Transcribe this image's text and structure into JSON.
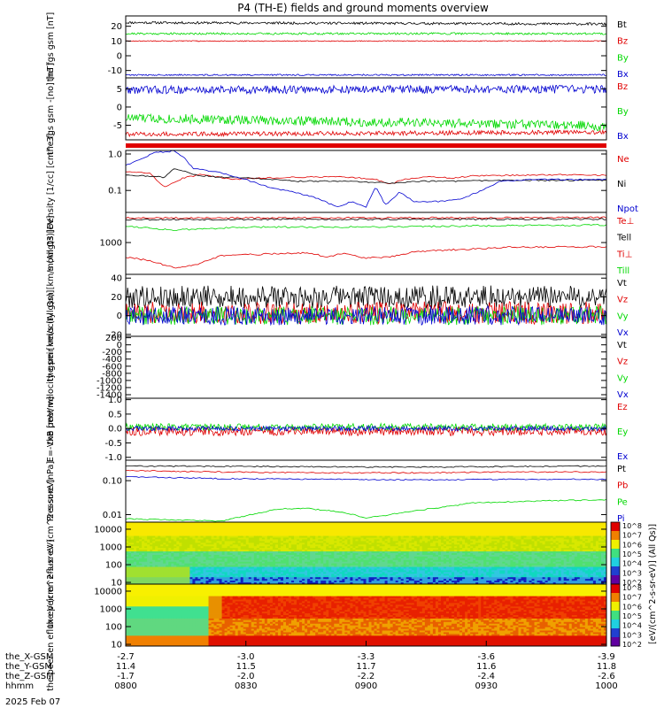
{
  "title": "P4 (TH-E) fields and ground moments overview",
  "date_label": "2025 Feb 07",
  "colorbar_label": "[eV/(cm^2-s-sr-eV)] (All Qs)]",
  "colorbar_ticks": [
    "10^8",
    "10^7",
    "10^6",
    "10^5",
    "10^4",
    "10^3",
    "10^2"
  ],
  "time_axis": {
    "hhmm": [
      "0800",
      "0830",
      "0900",
      "0930",
      "1000"
    ],
    "rows": [
      {
        "label": "the_X-GSM",
        "values": [
          "-2.7",
          "-3.0",
          "-3.3",
          "-3.6",
          "-3.9"
        ]
      },
      {
        "label": "the_Y-GSM",
        "values": [
          "11.4",
          "11.5",
          "11.7",
          "11.6",
          "11.8"
        ]
      },
      {
        "label": "the_Z-GSM",
        "values": [
          "-1.7",
          "-2.0",
          "-2.2",
          "-2.4",
          "-2.6"
        ]
      },
      {
        "label": "hhmm",
        "values": [
          "0800",
          "0830",
          "0900",
          "0930",
          "1000"
        ]
      }
    ]
  },
  "colors": {
    "black": "#000000",
    "red": "#e00000",
    "green": "#00d800",
    "blue": "#0000d0"
  },
  "chart_data": [
    {
      "type": "line",
      "ylabel": "the fgs gsm [nT]",
      "ylim": [
        -15,
        27
      ],
      "yticks": [
        "20",
        "10",
        "0",
        "-10"
      ],
      "ytickvals": [
        20,
        10,
        0,
        -10
      ],
      "series": [
        {
          "name": "Bt",
          "color": "black",
          "mean": 22.5,
          "noise": 0.8,
          "drift": -1
        },
        {
          "name": "Bz",
          "color": "red",
          "mean": 10,
          "noise": 0.3,
          "drift": 0
        },
        {
          "name": "By",
          "color": "green",
          "mean": 15,
          "noise": 0.7,
          "drift": 0
        },
        {
          "name": "Bx",
          "color": "blue",
          "mean": -13,
          "noise": 0.5,
          "drift": 0
        }
      ]
    },
    {
      "type": "line",
      "ylabel": "the fgs gsm -[no] [nT]",
      "ylim": [
        -9,
        8
      ],
      "yticks": [
        "5",
        "0",
        "-5"
      ],
      "ytickvals": [
        5,
        0,
        -5
      ],
      "series": [
        {
          "name": "Bz",
          "color": "red",
          "mean": -7.5,
          "noise": 0.6,
          "drift": 0.6
        },
        {
          "name": "By",
          "color": "green",
          "mean": -3,
          "noise": 1.3,
          "drift": -2.2
        },
        {
          "name": "Bx",
          "color": "blue",
          "mean": 4.7,
          "noise": 1.1,
          "drift": 0.2
        }
      ]
    },
    {
      "type": "line",
      "ylabel": "Density [1/cc] [cm^-3]",
      "scale": "log",
      "ylim": [
        0.025,
        1.25
      ],
      "yticks": [
        "1.0",
        "0.1"
      ],
      "ytickvals": [
        1.0,
        0.1
      ],
      "series": [
        {
          "name": "Ne",
          "color": "red",
          "points": [
            [
              0,
              0.33
            ],
            [
              0.05,
              0.3
            ],
            [
              0.08,
              0.12
            ],
            [
              0.12,
              0.22
            ],
            [
              0.16,
              0.28
            ],
            [
              0.22,
              0.2
            ],
            [
              0.29,
              0.22
            ],
            [
              0.35,
              0.23
            ],
            [
              0.45,
              0.24
            ],
            [
              0.52,
              0.2
            ],
            [
              0.55,
              0.15
            ],
            [
              0.58,
              0.2
            ],
            [
              0.62,
              0.24
            ],
            [
              0.68,
              0.22
            ],
            [
              0.72,
              0.25
            ],
            [
              0.8,
              0.26
            ],
            [
              0.9,
              0.27
            ],
            [
              1,
              0.26
            ]
          ]
        },
        {
          "name": "Ni",
          "color": "black",
          "points": [
            [
              0,
              0.27
            ],
            [
              0.08,
              0.23
            ],
            [
              0.1,
              0.4
            ],
            [
              0.15,
              0.26
            ],
            [
              0.2,
              0.23
            ],
            [
              0.26,
              0.22
            ],
            [
              0.3,
              0.2
            ],
            [
              0.35,
              0.18
            ],
            [
              0.45,
              0.18
            ],
            [
              0.55,
              0.16
            ],
            [
              0.62,
              0.18
            ],
            [
              0.7,
              0.18
            ],
            [
              0.8,
              0.19
            ],
            [
              0.9,
              0.19
            ],
            [
              1,
              0.19
            ]
          ]
        },
        {
          "name": "Npot",
          "color": "blue",
          "points": [
            [
              0,
              0.5
            ],
            [
              0.03,
              0.7
            ],
            [
              0.06,
              1.1
            ],
            [
              0.1,
              1.2
            ],
            [
              0.12,
              0.85
            ],
            [
              0.14,
              0.4
            ],
            [
              0.2,
              0.3
            ],
            [
              0.25,
              0.2
            ],
            [
              0.3,
              0.12
            ],
            [
              0.35,
              0.09
            ],
            [
              0.4,
              0.06
            ],
            [
              0.44,
              0.035
            ],
            [
              0.47,
              0.05
            ],
            [
              0.5,
              0.035
            ],
            [
              0.52,
              0.13
            ],
            [
              0.54,
              0.04
            ],
            [
              0.57,
              0.09
            ],
            [
              0.6,
              0.05
            ],
            [
              0.66,
              0.05
            ],
            [
              0.7,
              0.06
            ],
            [
              0.74,
              0.1
            ],
            [
              0.78,
              0.18
            ],
            [
              0.85,
              0.2
            ],
            [
              1,
              0.2
            ]
          ]
        }
      ]
    },
    {
      "type": "line",
      "ylabel": "momgt3 [eV]",
      "scale": "log",
      "ylim": [
        220,
        4200
      ],
      "yticks": [
        "1000"
      ],
      "ytickvals": [
        1000
      ],
      "series": [
        {
          "name": "Te⊥",
          "color": "red",
          "points": [
            [
              0,
              3200
            ],
            [
              1,
              3300
            ]
          ]
        },
        {
          "name": "Tell",
          "color": "black",
          "points": [
            [
              0,
              3000
            ],
            [
              1,
              3050
            ]
          ]
        },
        {
          "name": "Ti⊥",
          "color": "red",
          "points": [
            [
              0,
              500
            ],
            [
              0.05,
              420
            ],
            [
              0.1,
              300
            ],
            [
              0.15,
              360
            ],
            [
              0.2,
              540
            ],
            [
              0.25,
              560
            ],
            [
              0.3,
              580
            ],
            [
              0.38,
              620
            ],
            [
              0.42,
              500
            ],
            [
              0.45,
              600
            ],
            [
              0.5,
              480
            ],
            [
              0.55,
              500
            ],
            [
              0.6,
              650
            ],
            [
              0.7,
              720
            ],
            [
              0.8,
              800
            ],
            [
              1,
              820
            ]
          ]
        },
        {
          "name": "Till",
          "color": "green",
          "points": [
            [
              0,
              2200
            ],
            [
              0.05,
              2000
            ],
            [
              0.1,
              1800
            ],
            [
              0.2,
              2000
            ],
            [
              0.3,
              2100
            ],
            [
              0.5,
              2100
            ],
            [
              0.7,
              2200
            ],
            [
              1,
              2300
            ]
          ]
        }
      ]
    },
    {
      "type": "line",
      "ylabel": "the peir velocity gsm [km/s (All Qs)]",
      "ylim": [
        -22,
        44
      ],
      "yticks": [
        "40",
        "20",
        "0",
        "-20"
      ],
      "ytickvals": [
        40,
        20,
        0,
        -20
      ],
      "series": [
        {
          "name": "Vt",
          "color": "black",
          "mean": 20,
          "noise": 12,
          "drift": 0
        },
        {
          "name": "Vz",
          "color": "red",
          "mean": 3,
          "noise": 12,
          "drift": 0
        },
        {
          "name": "Vy",
          "color": "green",
          "mean": 0,
          "noise": 10,
          "drift": 0
        },
        {
          "name": "Vx",
          "color": "blue",
          "mean": 0,
          "noise": 10,
          "drift": 0
        }
      ]
    },
    {
      "type": "line",
      "ylabel": "the peer velocity gsm [km/s (All Qs)]",
      "ylim": [
        -1500,
        240
      ],
      "yticks": [
        "200",
        "0",
        "-200",
        "-400",
        "-600",
        "-800",
        "-1000",
        "-1200",
        "-1400"
      ],
      "ytickvals": [
        200,
        0,
        -200,
        -400,
        -600,
        -800,
        -1000,
        -1200,
        -1400
      ],
      "series": [
        {
          "name": "Vt",
          "color": "black"
        },
        {
          "name": "Vz",
          "color": "red"
        },
        {
          "name": "Vy",
          "color": "green"
        },
        {
          "name": "Vx",
          "color": "blue"
        }
      ]
    },
    {
      "type": "line",
      "ylabel": "E=-VxB [mV/m]",
      "ylim": [
        -1.1,
        1.05
      ],
      "yticks": [
        "1.0",
        "0.5",
        "0.0",
        "-0.5",
        "-1.0"
      ],
      "ytickvals": [
        1.0,
        0.5,
        0.0,
        -0.5,
        -1.0
      ],
      "series": [
        {
          "name": "Ez",
          "color": "red",
          "mean": -0.1,
          "noise": 0.15,
          "drift": 0
        },
        {
          "name": "Ey",
          "color": "green",
          "mean": 0.05,
          "noise": 0.12,
          "drift": 0
        },
        {
          "name": "Ex",
          "color": "blue",
          "mean": 0,
          "noise": 0.08,
          "drift": 0
        }
      ]
    },
    {
      "type": "line",
      "ylabel": "Pressure [nPa]",
      "scale": "log",
      "ylim": [
        0.006,
        0.4
      ],
      "yticks": [
        "0.10",
        "0.01"
      ],
      "ytickvals": [
        0.1,
        0.01
      ],
      "series": [
        {
          "name": "Pt",
          "color": "black",
          "points": [
            [
              0,
              0.27
            ],
            [
              0.3,
              0.26
            ],
            [
              0.6,
              0.25
            ],
            [
              1,
              0.27
            ]
          ]
        },
        {
          "name": "Pb",
          "color": "red",
          "points": [
            [
              0,
              0.2
            ],
            [
              0.2,
              0.18
            ],
            [
              0.4,
              0.17
            ],
            [
              0.6,
              0.17
            ],
            [
              0.8,
              0.18
            ],
            [
              1,
              0.18
            ]
          ]
        },
        {
          "name": "Pe",
          "color": "green",
          "points": [
            [
              0,
              0.0075
            ],
            [
              0.2,
              0.0065
            ],
            [
              0.26,
              0.01
            ],
            [
              0.32,
              0.015
            ],
            [
              0.38,
              0.015
            ],
            [
              0.45,
              0.012
            ],
            [
              0.5,
              0.008
            ],
            [
              0.55,
              0.01
            ],
            [
              0.6,
              0.013
            ],
            [
              0.68,
              0.018
            ],
            [
              0.72,
              0.022
            ],
            [
              0.8,
              0.024
            ],
            [
              0.9,
              0.026
            ],
            [
              1,
              0.027
            ]
          ]
        },
        {
          "name": "Pi",
          "color": "blue",
          "points": [
            [
              0,
              0.13
            ],
            [
              0.2,
              0.115
            ],
            [
              0.4,
              0.11
            ],
            [
              0.6,
              0.105
            ],
            [
              0.8,
              0.11
            ],
            [
              1,
              0.11
            ]
          ]
        }
      ]
    },
    {
      "type": "heatmap",
      "ylabel": "the peir en eflux eV (cm^2-s-sr-eV)",
      "scale": "log",
      "ylim": [
        8,
        25000
      ],
      "yticks": [
        "10000",
        "1000",
        "100",
        "10"
      ],
      "ytickvals": [
        10000,
        1000,
        100,
        10
      ]
    },
    {
      "type": "heatmap",
      "ylabel": "the peer en eflux eV (cm^2-s-sr-eV)",
      "scale": "log",
      "ylim": [
        8,
        25000
      ],
      "yticks": [
        "10000",
        "1000",
        "100",
        "10"
      ],
      "ytickvals": [
        10000,
        1000,
        100,
        10
      ]
    }
  ]
}
